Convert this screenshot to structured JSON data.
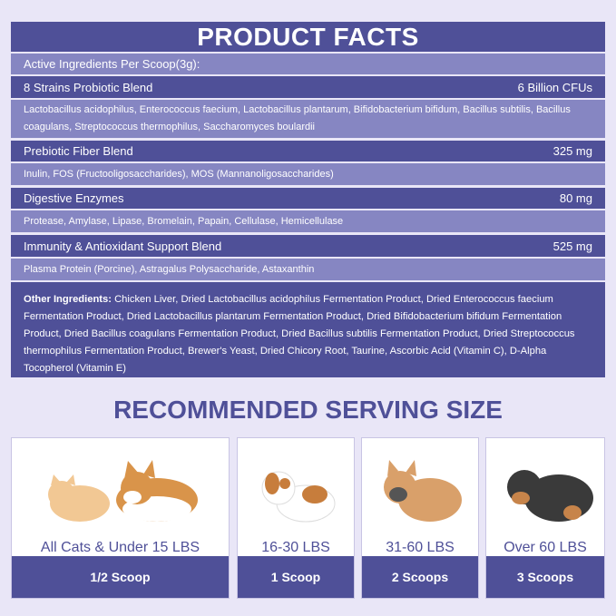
{
  "facts": {
    "title": "PRODUCT FACTS",
    "active_label": "Active Ingredients Per Scoop(3g):",
    "blends": [
      {
        "name": "8 Strains Probiotic Blend",
        "amount": "6 Billion CFUs",
        "ingredients": "Lactobacillus acidophilus, Enterococcus faecium, Lactobacillus plantarum, Bifidobacterium bifidum, Bacillus subtilis, Bacillus coagulans, Streptococcus thermophilus, Saccharomyces boulardii"
      },
      {
        "name": "Prebiotic Fiber Blend",
        "amount": "325 mg",
        "ingredients": "Inulin, FOS (Fructooligosaccharides), MOS (Mannanoligosaccharides)"
      },
      {
        "name": "Digestive Enzymes",
        "amount": "80 mg",
        "ingredients": "Protease, Amylase, Lipase, Bromelain, Papain, Cellulase, Hemicellulase"
      },
      {
        "name": "Immunity & Antioxidant Support Blend",
        "amount": "525 mg",
        "ingredients": "Plasma Protein (Porcine), Astragalus Polysaccharide, Astaxanthin"
      }
    ],
    "other_label": "Other Ingredients:",
    "other_text": " Chicken Liver, Dried Lactobacillus acidophilus Fermentation Product, Dried Enterococcus faecium Fermentation Product, Dried Lactobacillus plantarum Fermentation Product, Dried Bifidobacterium bifidum Fermentation Product, Dried Bacillus coagulans Fermentation Product, Dried Bacillus subtilis Fermentation Product, Dried Streptococcus thermophilus Fermentation Product, Brewer's Yeast, Dried Chicory Root, Taurine, Ascorbic Acid (Vitamin C), D-Alpha Tocopherol (Vitamin E)"
  },
  "serving": {
    "title": "RECOMMENDED SERVING SIZE",
    "cards": [
      {
        "size": "All Cats & Under 15 LBS",
        "dose": "1/2 Scoop",
        "image": "cat-and-corgi"
      },
      {
        "size": "16-30 LBS",
        "dose": "1 Scoop",
        "image": "beagle-puppy"
      },
      {
        "size": "31-60 LBS",
        "dose": "2 Scoops",
        "image": "french-bulldog"
      },
      {
        "size": "Over 60 LBS",
        "dose": "3 Scoops",
        "image": "rottweiler"
      }
    ]
  },
  "colors": {
    "dark": "#4f5098",
    "light": "#8686c2",
    "background": "#e9e6f7"
  }
}
